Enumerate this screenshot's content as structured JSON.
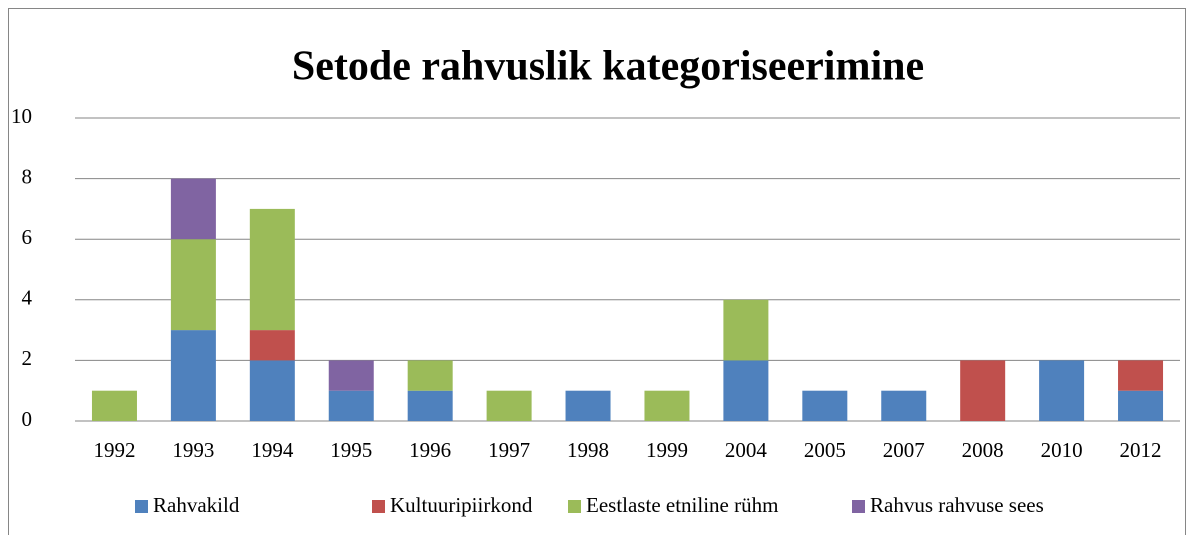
{
  "chart_data": {
    "type": "stacked_bar",
    "title": "Setode rahvuslik kategoriseerimine",
    "categories": [
      "1992",
      "1993",
      "1994",
      "1995",
      "1996",
      "1997",
      "1998",
      "1999",
      "2004",
      "2005",
      "2007",
      "2008",
      "2010",
      "2012"
    ],
    "series": [
      {
        "name": "Rahvakild",
        "color": "#4f81bd",
        "values": [
          0,
          3,
          2,
          1,
          1,
          0,
          1,
          0,
          2,
          1,
          1,
          0,
          2,
          1
        ]
      },
      {
        "name": "Kultuuripiirkond",
        "color": "#c0504d",
        "values": [
          0,
          0,
          1,
          0,
          0,
          0,
          0,
          0,
          0,
          0,
          0,
          2,
          0,
          1
        ]
      },
      {
        "name": "Eestlaste etniline rühm",
        "color": "#9bbb59",
        "values": [
          1,
          3,
          4,
          0,
          1,
          1,
          0,
          1,
          2,
          0,
          0,
          0,
          0,
          0
        ]
      },
      {
        "name": "Rahvus rahvuse sees",
        "color": "#8064a2",
        "values": [
          0,
          2,
          0,
          1,
          0,
          0,
          0,
          0,
          0,
          0,
          0,
          0,
          0,
          0
        ]
      }
    ],
    "ylim": [
      0,
      10
    ],
    "yticks": [
      0,
      2,
      4,
      6,
      8,
      10
    ],
    "grid": true,
    "legend": "bottom"
  }
}
